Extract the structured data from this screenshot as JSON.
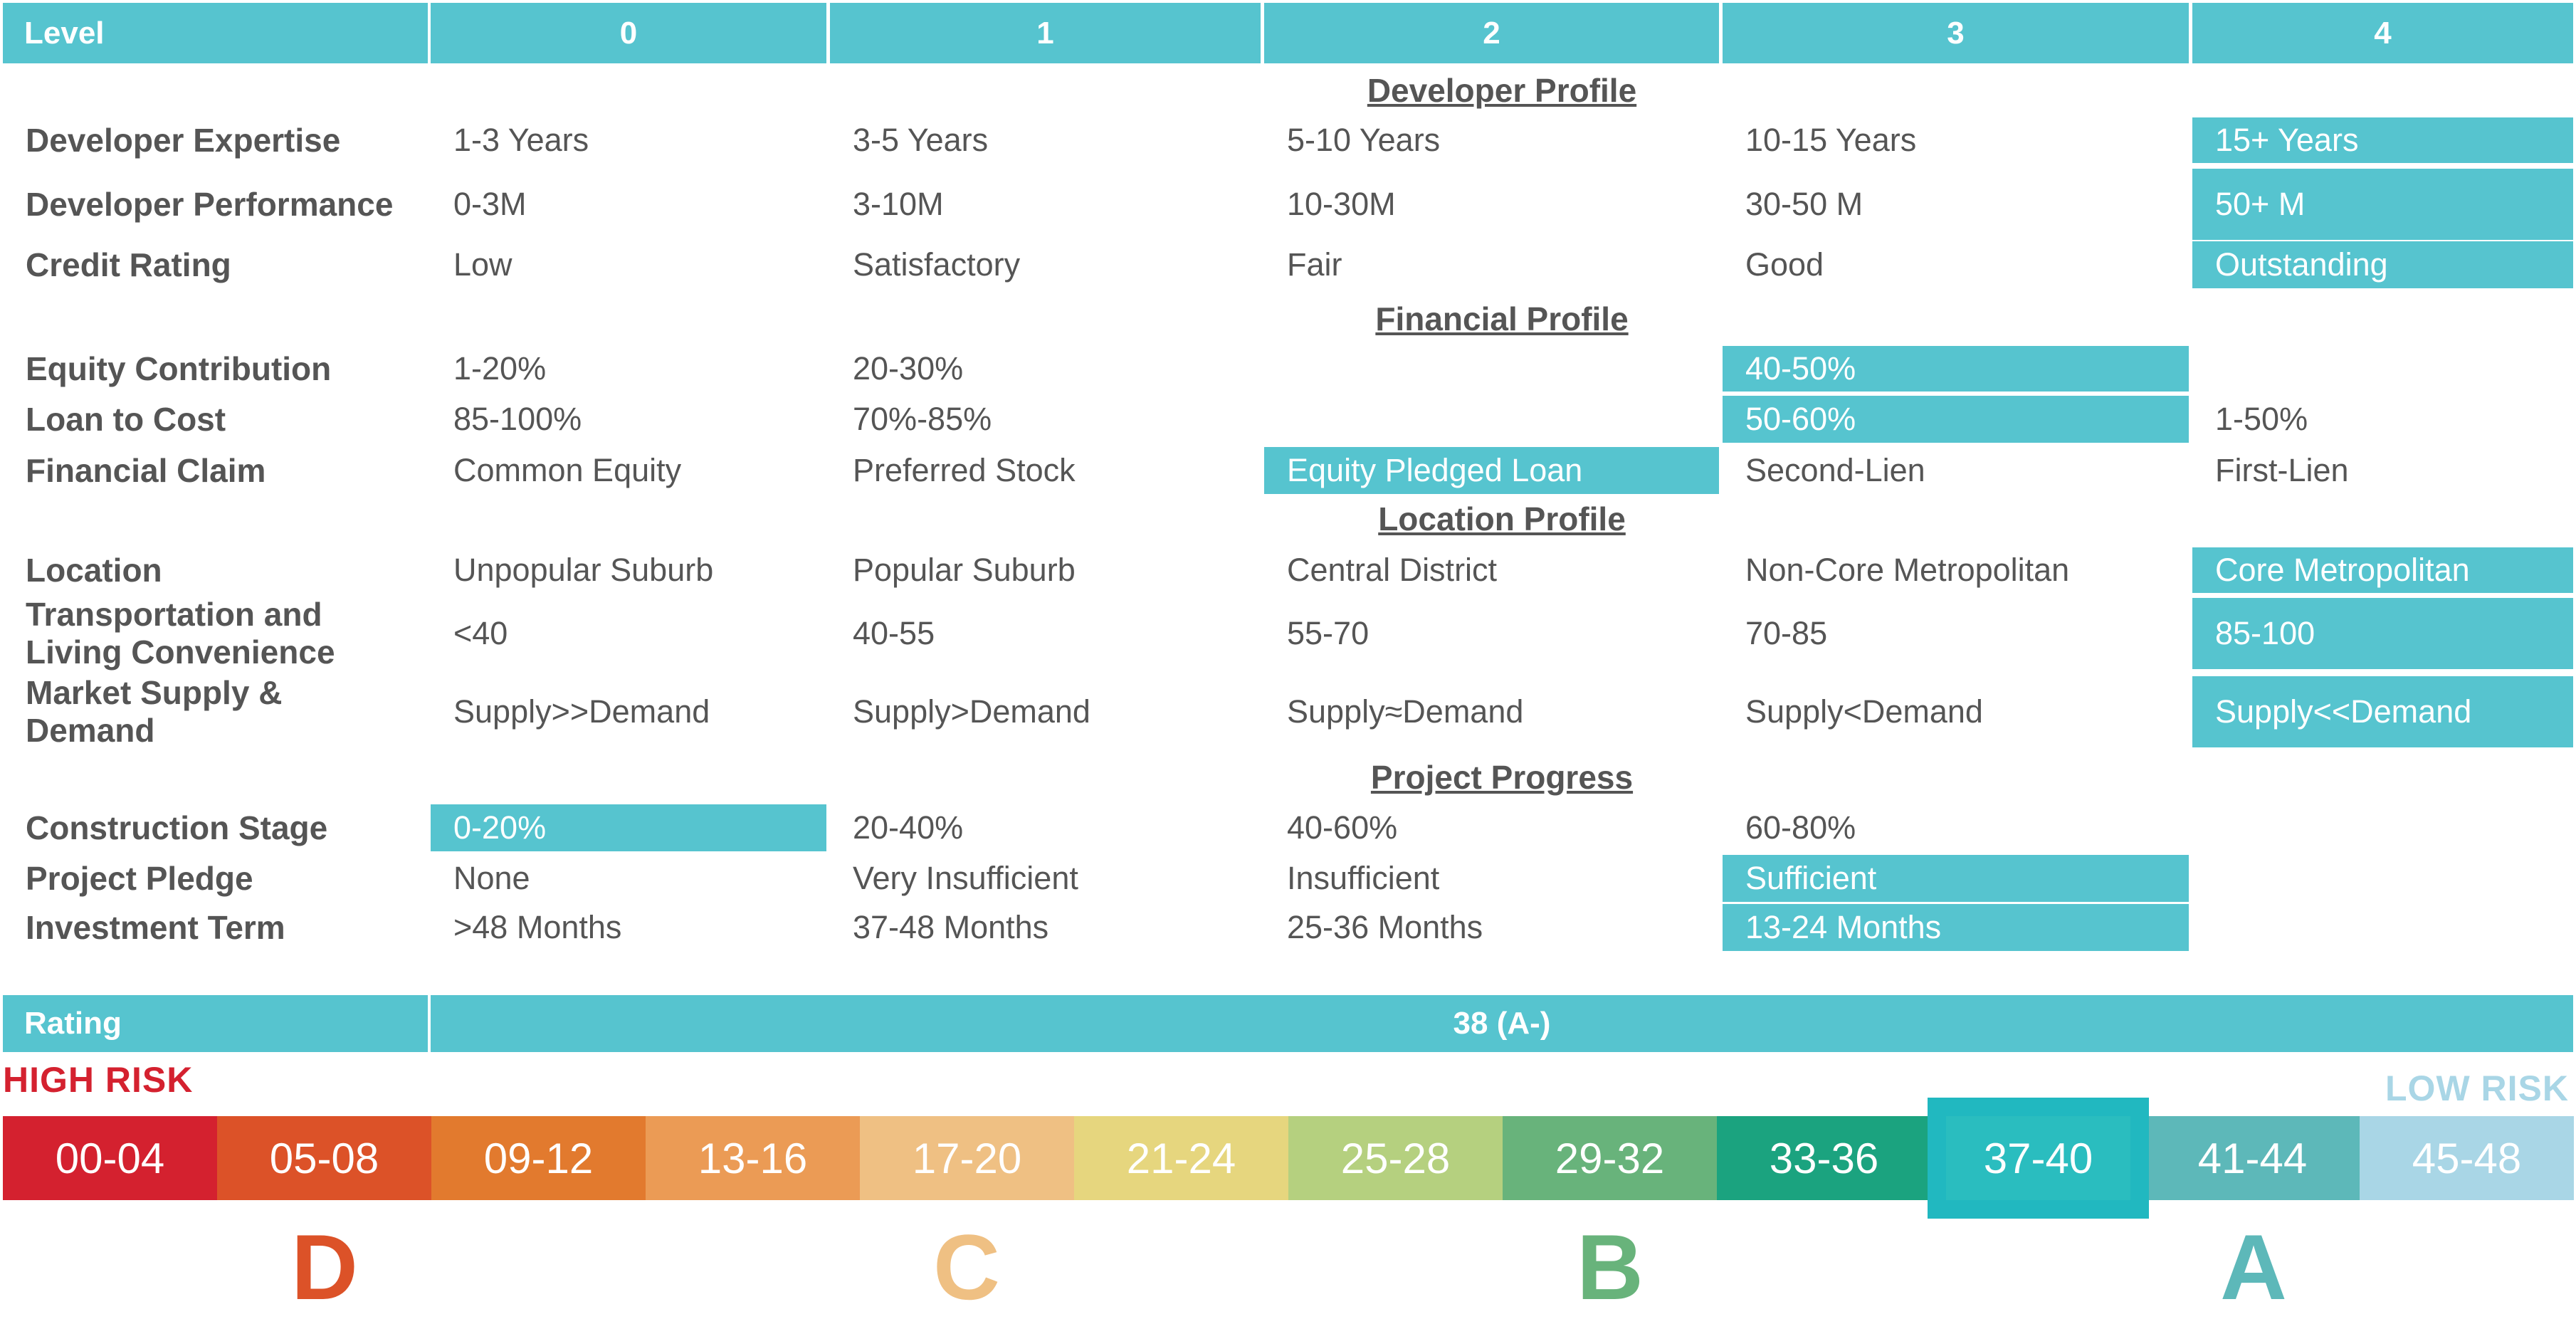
{
  "header": {
    "level_label": "Level",
    "levels": [
      "0",
      "1",
      "2",
      "3",
      "4"
    ]
  },
  "sections": [
    {
      "title": "Developer Profile",
      "rows": [
        {
          "label": "Developer Expertise",
          "cells": [
            "1-3 Years",
            "3-5 Years",
            "5-10 Years",
            "10-15 Years",
            "15+  Years"
          ],
          "highlight": 4
        },
        {
          "label": "Developer Performance",
          "cells": [
            "0-3M",
            "3-10M",
            "10-30M",
            "30-50 M",
            "50+ M"
          ],
          "highlight": 4
        },
        {
          "label": "Credit Rating",
          "cells": [
            "Low",
            "Satisfactory",
            "Fair",
            "Good",
            "Outstanding"
          ],
          "highlight": 4
        }
      ]
    },
    {
      "title": "Financial Profile",
      "rows": [
        {
          "label": "Equity Contribution",
          "cells": [
            "1-20%",
            "20-30%",
            "",
            "40-50%",
            ""
          ],
          "highlight": 3
        },
        {
          "label": "Loan to Cost",
          "cells": [
            "85-100%",
            "70%-85%",
            "",
            "50-60%",
            "1-50%"
          ],
          "highlight": 3
        },
        {
          "label": "Financial Claim",
          "cells": [
            "Common Equity",
            "Preferred Stock",
            "Equity Pledged Loan",
            "Second-Lien",
            "First-Lien"
          ],
          "highlight": 2
        }
      ]
    },
    {
      "title": "Location Profile",
      "rows": [
        {
          "label": "Location",
          "cells": [
            "Unpopular Suburb",
            "Popular Suburb",
            "Central District",
            "Non-Core Metropolitan",
            "Core Metropolitan"
          ],
          "highlight": 4
        },
        {
          "label": "Transportation and Living Convenience",
          "cells": [
            "<40",
            "40-55",
            "55-70",
            "70-85",
            "85-100"
          ],
          "highlight": 4
        },
        {
          "label": "Market Supply & Demand",
          "cells": [
            "Supply>>Demand",
            "Supply>Demand",
            "Supply≈Demand",
            "Supply<Demand",
            "Supply<<Demand"
          ],
          "highlight": 4
        }
      ]
    },
    {
      "title": "Project Progress",
      "rows": [
        {
          "label": "Construction Stage",
          "cells": [
            "0-20%",
            "20-40%",
            "40-60%",
            "60-80%",
            ""
          ],
          "highlight": 0
        },
        {
          "label": "Project Pledge",
          "cells": [
            "None",
            "Very Insufficient",
            "Insufficient",
            "Sufficient",
            ""
          ],
          "highlight": 3
        },
        {
          "label": "Investment Term",
          "cells": [
            ">48 Months",
            "37-48 Months",
            "25-36 Months",
            "13-24 Months",
            ""
          ],
          "highlight": 3
        }
      ]
    }
  ],
  "rating": {
    "label": "Rating",
    "value": "38 (A-)"
  },
  "risk": {
    "high": "HIGH RISK",
    "low": "LOW RISK"
  },
  "scale": {
    "bands": [
      "00-04",
      "05-08",
      "09-12",
      "13-16",
      "17-20",
      "21-24",
      "25-28",
      "29-32",
      "33-36",
      "37-40",
      "41-44",
      "45-48"
    ],
    "colors": [
      "#d4212f",
      "#dc5228",
      "#e27a2e",
      "#eb9b55",
      "#efc083",
      "#e6d67e",
      "#b5d07f",
      "#68b37b",
      "#1ba37f",
      "#2abdbf",
      "#5db8b9",
      "#a9d6e6"
    ],
    "selected": "37-40",
    "selected_index": 9
  },
  "grades": [
    {
      "letter": "D",
      "color": "#dc5228"
    },
    {
      "letter": "C",
      "color": "#efc083"
    },
    {
      "letter": "B",
      "color": "#68b37b"
    },
    {
      "letter": "A",
      "color": "#5db8b9"
    }
  ],
  "colors": {
    "accent": "#56c4cf",
    "text": "#555555",
    "high_risk": "#d4212f",
    "low_risk": "#a9d6e6"
  }
}
